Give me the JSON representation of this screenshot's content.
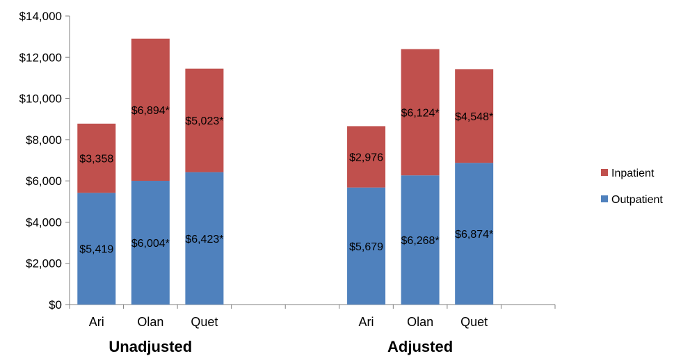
{
  "chart_data": {
    "type": "bar",
    "stacked": true,
    "ylim": [
      0,
      14000
    ],
    "yticks": [
      0,
      2000,
      4000,
      6000,
      8000,
      10000,
      12000,
      14000
    ],
    "ytick_labels": [
      "$0",
      "$2,000",
      "$4,000",
      "$6,000",
      "$8,000",
      "$10,000",
      "$12,000",
      "$14,000"
    ],
    "grid": false,
    "legend_position": "right",
    "groups": [
      {
        "label": "Unadjusted",
        "categories": [
          "Ari",
          "Olan",
          "Quet"
        ],
        "series": [
          {
            "name": "Outpatient",
            "values": [
              5419,
              6004,
              6423
            ],
            "labels": [
              "$5,419",
              "$6,004*",
              "$6,423*"
            ]
          },
          {
            "name": "Inpatient",
            "values": [
              3358,
              6894,
              5023
            ],
            "labels": [
              "$3,358",
              "$6,894*",
              "$5,023*"
            ]
          }
        ]
      },
      {
        "label": "Adjusted",
        "categories": [
          "Ari",
          "Olan",
          "Quet"
        ],
        "series": [
          {
            "name": "Outpatient",
            "values": [
              5679,
              6268,
              6874
            ],
            "labels": [
              "$5,679",
              "$6,268*",
              "$6,874*"
            ]
          },
          {
            "name": "Inpatient",
            "values": [
              2976,
              6124,
              4548
            ],
            "labels": [
              "$2,976",
              "$6,124*",
              "$4,548*"
            ]
          }
        ]
      }
    ],
    "legend": [
      {
        "name": "Inpatient",
        "color": "#c0504d"
      },
      {
        "name": "Outpatient",
        "color": "#4f81bd"
      }
    ],
    "colors": {
      "Outpatient": "#4f81bd",
      "Inpatient": "#c0504d",
      "axis": "#808080"
    }
  }
}
